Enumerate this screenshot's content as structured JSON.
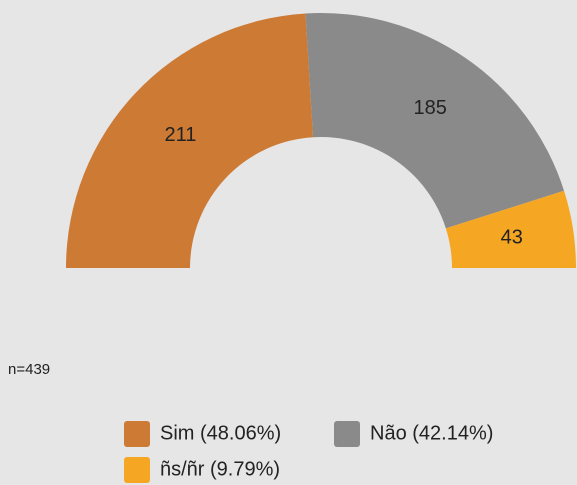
{
  "chart_data": {
    "type": "pie",
    "shape": "half-donut",
    "categories": [
      "Sim (48.06%)",
      "Não (42.14%)",
      "ñs/ñr (9.79%)"
    ],
    "values": [
      211,
      185,
      43
    ],
    "colors": [
      "#cd7a35",
      "#8a8a8a",
      "#f5a623"
    ],
    "annotation": "n=439"
  }
}
